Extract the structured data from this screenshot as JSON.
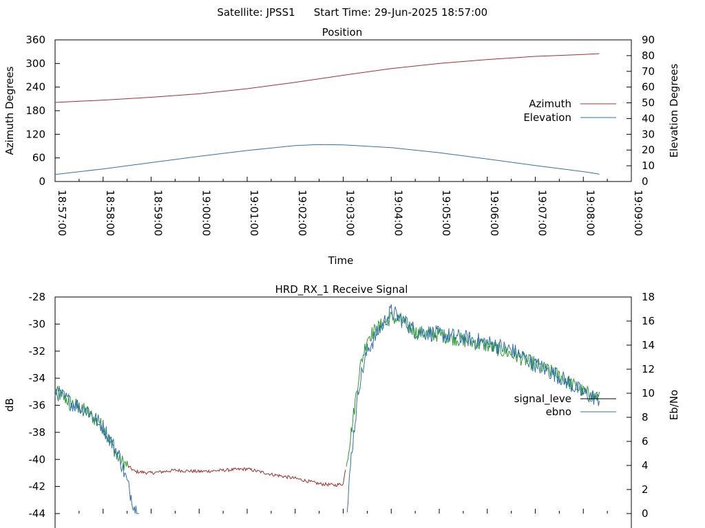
{
  "header": {
    "satellite_label": "Satellite: JPSS1",
    "start_label": "Start Time: 29-Jun-2025 18:57:00"
  },
  "chart_data": [
    {
      "type": "line",
      "title": "Position",
      "xlabel": "Time",
      "ylabel": "Azimuth Degrees",
      "ylabel2": "Elevation Degrees",
      "x_ticks": [
        "18:57:00",
        "18:58:00",
        "18:59:00",
        "19:00:00",
        "19:01:00",
        "19:02:00",
        "19:03:00",
        "19:04:00",
        "19:05:00",
        "19:06:00",
        "19:07:00",
        "19:08:00",
        "19:09:00"
      ],
      "xlim": [
        "18:57:00",
        "19:09:00"
      ],
      "ylim": [
        0,
        360
      ],
      "y_ticks": [
        0,
        60,
        120,
        180,
        240,
        300,
        360
      ],
      "ylim2": [
        0,
        90
      ],
      "y2_ticks": [
        0,
        10,
        20,
        30,
        40,
        50,
        60,
        70,
        80,
        90
      ],
      "legend": "right",
      "series": [
        {
          "name": "Azimuth",
          "axis": "left",
          "color": "#a03030",
          "x": [
            "18:57:00",
            "18:58:00",
            "18:59:00",
            "19:00:00",
            "19:01:00",
            "19:02:00",
            "19:03:00",
            "19:04:00",
            "19:05:00",
            "19:06:00",
            "19:07:00",
            "19:08:00",
            "19:08:20"
          ],
          "values": [
            201,
            207,
            214,
            223,
            236,
            252,
            270,
            287,
            300,
            310,
            318,
            323,
            325
          ]
        },
        {
          "name": "Elevation",
          "axis": "right",
          "color": "#3070a8",
          "x": [
            "18:57:00",
            "18:58:00",
            "18:59:00",
            "19:00:00",
            "19:01:00",
            "19:02:00",
            "19:02:30",
            "19:03:00",
            "19:04:00",
            "19:05:00",
            "19:06:00",
            "19:07:00",
            "19:08:00",
            "19:08:20"
          ],
          "values": [
            4.5,
            8.0,
            12.0,
            16.0,
            19.7,
            22.8,
            23.5,
            23.3,
            21.5,
            18.3,
            14.3,
            10.2,
            6.3,
            4.7
          ]
        }
      ]
    },
    {
      "type": "line",
      "title": "HRD_RX_1 Receive Signal",
      "ylabel": "dB",
      "ylabel2": "Eb/No",
      "ylim": [
        -44,
        -28
      ],
      "y_ticks": [
        -44,
        -42,
        -40,
        -38,
        -36,
        -34,
        -32,
        -30,
        -28
      ],
      "ylim2": [
        0,
        18
      ],
      "y2_ticks": [
        0,
        2,
        4,
        6,
        8,
        10,
        12,
        14,
        16,
        18
      ],
      "xlim": [
        "18:57:00",
        "19:09:00"
      ],
      "legend": "right",
      "legend_entries": [
        {
          "name": "signal_level",
          "label": "signal_leve",
          "color": "#000000"
        },
        {
          "name": "ebno",
          "label": "ebno",
          "color": "#3070a8"
        }
      ],
      "series": [
        {
          "name": "signal_level",
          "axis": "left",
          "color": "#2a9a2a",
          "low_color": "#a03030",
          "x": [
            "18:57:00",
            "18:57:20",
            "18:57:40",
            "18:58:00",
            "18:58:20",
            "18:58:40",
            "18:59:00",
            "18:59:30",
            "19:00:00",
            "19:00:30",
            "19:01:00",
            "19:01:30",
            "19:02:00",
            "19:02:30",
            "19:02:50",
            "19:03:00",
            "19:03:10",
            "19:03:20",
            "19:03:30",
            "19:03:45",
            "19:04:00",
            "19:04:15",
            "19:04:30",
            "19:05:00",
            "19:05:30",
            "19:06:00",
            "19:06:30",
            "19:07:00",
            "19:07:30",
            "19:08:00",
            "19:08:20"
          ],
          "values": [
            -35.0,
            -35.8,
            -36.5,
            -37.6,
            -40.0,
            -40.9,
            -41.0,
            -40.8,
            -40.9,
            -40.8,
            -40.7,
            -41.1,
            -41.4,
            -41.8,
            -41.9,
            -41.8,
            -38.0,
            -33.5,
            -31.0,
            -30.2,
            -29.5,
            -29.8,
            -30.6,
            -30.8,
            -31.2,
            -31.6,
            -32.2,
            -33.0,
            -33.8,
            -35.0,
            -35.5
          ]
        },
        {
          "name": "ebno",
          "axis": "right",
          "color": "#3070a8",
          "x": [
            "18:57:00",
            "18:57:20",
            "18:57:40",
            "18:58:00",
            "18:58:20",
            "18:58:40",
            "18:58:45",
            "19:03:00",
            "19:03:05",
            "19:03:10",
            "19:03:20",
            "19:03:30",
            "19:03:45",
            "19:04:00",
            "19:04:15",
            "19:04:30",
            "19:05:00",
            "19:05:30",
            "19:06:00",
            "19:06:30",
            "19:07:00",
            "19:07:30",
            "19:08:00",
            "19:08:20"
          ],
          "values": [
            10.2,
            9.2,
            8.6,
            7.2,
            4.8,
            0.4,
            0.0,
            0.0,
            0.0,
            4.8,
            10.8,
            13.5,
            15.3,
            16.8,
            16.0,
            15.2,
            14.9,
            14.6,
            14.2,
            13.6,
            12.4,
            11.4,
            10.0,
            9.5
          ]
        }
      ]
    }
  ]
}
